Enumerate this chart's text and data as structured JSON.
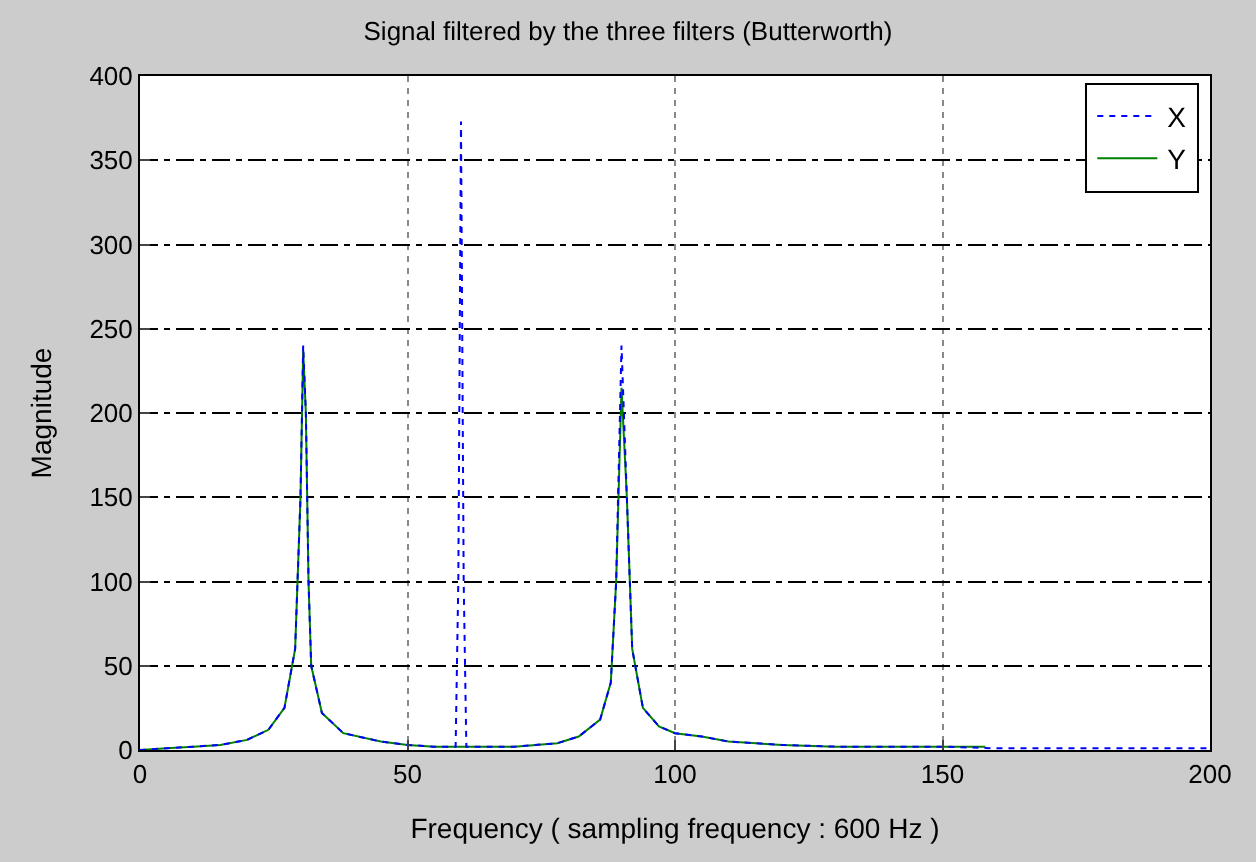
{
  "chart_data": {
    "type": "line",
    "title": "Signal filtered by the three filters (Butterworth)",
    "xlabel": "Frequency ( sampling frequency : 600 Hz )",
    "ylabel": "Magnitude",
    "xlim": [
      0,
      200
    ],
    "xticks": [
      0,
      50,
      100,
      150,
      200
    ],
    "ylim": [
      0,
      400
    ],
    "yticks": [
      0,
      50,
      100,
      150,
      200,
      250,
      300,
      350,
      400
    ],
    "grid": true,
    "legend": "top right",
    "marker": "none",
    "series": [
      {
        "name": "X",
        "color": "#0000ff",
        "line_style": "dotted",
        "x": [
          0,
          5,
          10,
          15,
          20,
          24,
          27,
          29,
          30,
          30.5,
          31,
          31.5,
          32,
          34,
          38,
          45,
          50,
          55,
          59,
          59.5,
          60,
          60.5,
          61,
          65,
          70,
          78,
          82,
          86,
          88,
          89,
          90,
          91,
          92,
          94,
          97,
          100,
          105,
          110,
          120,
          130,
          140,
          150,
          160,
          180,
          200
        ],
        "values": [
          0,
          1,
          2,
          3,
          6,
          12,
          25,
          60,
          150,
          240,
          200,
          100,
          50,
          22,
          10,
          5,
          3,
          2,
          2,
          100,
          373,
          100,
          2,
          2,
          2,
          4,
          8,
          18,
          40,
          100,
          240,
          150,
          60,
          25,
          14,
          10,
          8,
          5,
          3,
          2,
          2,
          2,
          1,
          1,
          1
        ]
      },
      {
        "name": "Y",
        "color": "#008000",
        "line_style": "solid",
        "x": [
          0,
          5,
          10,
          15,
          20,
          24,
          27,
          29,
          30,
          30.5,
          31,
          31.5,
          32,
          34,
          38,
          45,
          50,
          55,
          60,
          65,
          70,
          78,
          82,
          86,
          88,
          89,
          90,
          91,
          92,
          94,
          97,
          100,
          105,
          110,
          120,
          130,
          140,
          150,
          158
        ],
        "values": [
          0,
          1,
          2,
          3,
          6,
          12,
          25,
          60,
          150,
          237,
          200,
          100,
          50,
          22,
          10,
          5,
          3,
          2,
          2,
          2,
          2,
          4,
          8,
          18,
          40,
          100,
          215,
          150,
          60,
          25,
          14,
          10,
          8,
          5,
          3,
          2,
          2,
          2,
          2
        ]
      }
    ]
  }
}
